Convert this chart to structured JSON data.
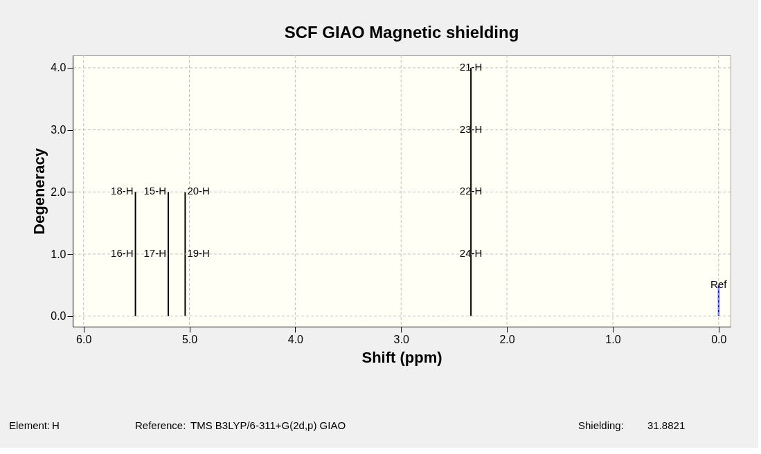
{
  "chart_data": {
    "type": "bar",
    "stacked": true,
    "title": "SCF GIAO Magnetic shielding",
    "xlabel": "Shift (ppm)",
    "ylabel": "Degeneracy",
    "x": [
      5.51,
      5.2,
      5.04,
      2.34,
      0.0
    ],
    "series": [
      {
        "colors": [
          "#000000",
          "#000000",
          "#000000",
          "#000000",
          "#0000ff"
        ],
        "values": [
          1,
          1,
          1,
          1,
          0.5
        ]
      },
      {
        "color": "#000000",
        "values": [
          1,
          1,
          1,
          1,
          null
        ]
      },
      {
        "color": "#000000",
        "values": [
          null,
          null,
          null,
          1,
          null
        ]
      },
      {
        "color": "#000000",
        "values": [
          null,
          null,
          null,
          1,
          null
        ]
      }
    ],
    "xlim": [
      6.07,
      -0.08
    ],
    "ylim": [
      -0.17,
      4.2
    ],
    "xticks": [
      {
        "value": 6,
        "label": "6.0"
      },
      {
        "value": 5,
        "label": "5.0"
      },
      {
        "value": 4,
        "label": "4.0"
      },
      {
        "value": 3,
        "label": "3.0"
      },
      {
        "value": 2,
        "label": "2.0"
      },
      {
        "value": 1,
        "label": "1.0"
      },
      {
        "value": 0,
        "label": "0.0"
      }
    ],
    "yticks": [
      {
        "value": 0,
        "label": "0.0"
      },
      {
        "value": 1,
        "label": "1.0"
      },
      {
        "value": 2,
        "label": "2.0"
      },
      {
        "value": 3,
        "label": "3.0"
      },
      {
        "value": 4,
        "label": "4.0"
      }
    ],
    "grid": true,
    "annotations": [
      {
        "text": "16-H",
        "x": 5.51,
        "y": 1
      },
      {
        "text": "18-H",
        "x": 5.51,
        "y": 2
      },
      {
        "text": "17-H",
        "x": 5.2,
        "y": 1
      },
      {
        "text": "15-H",
        "x": 5.2,
        "y": 2
      },
      {
        "text": "19-H",
        "x": 5.04,
        "y": 1
      },
      {
        "text": "20-H",
        "x": 5.04,
        "y": 2
      },
      {
        "text": "24-H",
        "x": 2.34,
        "y": 1
      },
      {
        "text": "22-H",
        "x": 2.34,
        "y": 2
      },
      {
        "text": "23-H",
        "x": 2.34,
        "y": 3
      },
      {
        "text": "21-H",
        "x": 2.34,
        "y": 4
      },
      {
        "text": "Ref",
        "x": 0.0,
        "y": 0.5
      },
      "Element:",
      "H",
      "Reference:",
      "TMS B3LYP/6-311+G(2d,p) GIAO",
      "Shielding:",
      "31.8821"
    ]
  }
}
